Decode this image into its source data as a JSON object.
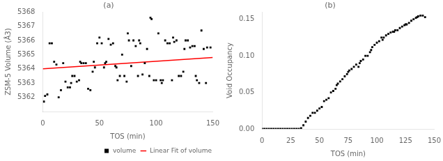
{
  "chart_data": [
    {
      "type": "scatter",
      "title": "(a)",
      "xlabel": "TOS (min)",
      "ylabel": "ZSM-5 Volume (Å3)",
      "xlim": [
        0,
        150
      ],
      "ylim": [
        5361,
        5368
      ],
      "xticks": [
        0,
        50,
        100,
        150
      ],
      "yticks": [
        5362,
        5363,
        5364,
        5365,
        5366,
        5367,
        5368
      ],
      "grid": false,
      "legend": "lower right",
      "series": [
        {
          "name": "volume",
          "type": "scatter",
          "marker": "square",
          "color": "#000000",
          "x": [
            1,
            2,
            4,
            6,
            8,
            10,
            12,
            14,
            16,
            18,
            20,
            22,
            24,
            25,
            26,
            28,
            30,
            32,
            33,
            34,
            36,
            38,
            40,
            42,
            44,
            45,
            46,
            48,
            50,
            52,
            54,
            55,
            56,
            58,
            60,
            62,
            64,
            65,
            66,
            68,
            70,
            72,
            74,
            75,
            76,
            78,
            80,
            82,
            84,
            85,
            86,
            88,
            90,
            92,
            94,
            95,
            96,
            98,
            100,
            102,
            104,
            105,
            106,
            108,
            110,
            112,
            114,
            115,
            116,
            118,
            120,
            122,
            124,
            125,
            126,
            128,
            130,
            132,
            134,
            135,
            136,
            138,
            140,
            142,
            144,
            145,
            148
          ],
          "values": [
            5361.7,
            5362.1,
            5362.2,
            5365.8,
            5365.8,
            5364.5,
            5364.3,
            5362.0,
            5362.5,
            5364.4,
            5363.1,
            5362.7,
            5362.7,
            5363.0,
            5363.5,
            5363.5,
            5363.1,
            5363.2,
            5364.5,
            5364.4,
            5364.4,
            5364.4,
            5362.6,
            5362.5,
            5363.8,
            5364.5,
            5364.1,
            5365.8,
            5366.2,
            5365.8,
            5364.1,
            5364.4,
            5364.5,
            5366.1,
            5365.7,
            5365.8,
            5364.2,
            5364.1,
            5363.2,
            5363.5,
            5365.0,
            5363.5,
            5363.1,
            5366.5,
            5366.0,
            5364.2,
            5366.0,
            5365.6,
            5363.5,
            5366.0,
            5365.8,
            5363.6,
            5364.4,
            5365.4,
            5363.5,
            5367.6,
            5367.5,
            5363.2,
            5363.2,
            5366.5,
            5363.2,
            5363.0,
            5363.2,
            5366.0,
            5365.8,
            5365.8,
            5363.2,
            5366.2,
            5365.9,
            5366.0,
            5363.5,
            5363.5,
            5363.8,
            5365.4,
            5366.0,
            5366.0,
            5365.5,
            5365.6,
            5365.6,
            5363.5,
            5363.2,
            5363.0,
            5366.7,
            5365.4,
            5363.0,
            5365.5,
            5365.5
          ]
        },
        {
          "name": "Linear Fit of volume",
          "type": "line",
          "color": "#ff0000",
          "x": [
            0,
            150
          ],
          "values": [
            5364.0,
            5364.8
          ]
        }
      ]
    },
    {
      "type": "scatter",
      "title": "(b)",
      "xlabel": "TOS (min)",
      "ylabel": "Void Occupancy",
      "xlim": [
        0,
        150
      ],
      "ylim": [
        0,
        0.16
      ],
      "xticks": [
        0,
        25,
        50,
        75,
        100,
        125,
        150
      ],
      "yticks": [
        {
          "value": 0,
          "label": "0.00"
        },
        0.05,
        {
          "value": 0.1,
          "label": "0.10"
        },
        0.15
      ],
      "grid": false,
      "series": [
        {
          "type": "scatter",
          "marker": "square",
          "color": "#000000",
          "x": [
            0,
            2,
            4,
            6,
            8,
            10,
            12,
            14,
            16,
            18,
            20,
            22,
            24,
            26,
            28,
            30,
            32,
            34,
            36,
            38,
            40,
            42,
            44,
            46,
            48,
            50,
            52,
            54,
            56,
            58,
            60,
            62,
            64,
            65,
            66,
            68,
            70,
            72,
            74,
            75,
            76,
            78,
            80,
            82,
            84,
            85,
            86,
            88,
            90,
            92,
            94,
            95,
            96,
            98,
            100,
            102,
            104,
            105,
            106,
            108,
            110,
            112,
            114,
            115,
            116,
            118,
            120,
            122,
            124,
            125,
            126,
            128,
            130,
            132,
            134,
            135,
            136,
            138,
            140,
            142
          ],
          "values": [
            0.0,
            0.0,
            0.0,
            0.0,
            0.0,
            0.0,
            0.0,
            0.0,
            0.0,
            0.0,
            0.0,
            0.0,
            0.0,
            0.0,
            0.0,
            0.0,
            0.0,
            0.001,
            0.005,
            0.01,
            0.015,
            0.018,
            0.022,
            0.022,
            0.025,
            0.028,
            0.03,
            0.038,
            0.04,
            0.042,
            0.05,
            0.052,
            0.055,
            0.06,
            0.062,
            0.065,
            0.068,
            0.072,
            0.075,
            0.078,
            0.08,
            0.082,
            0.085,
            0.088,
            0.085,
            0.09,
            0.093,
            0.095,
            0.1,
            0.1,
            0.105,
            0.108,
            0.112,
            0.115,
            0.118,
            0.12,
            0.125,
            0.122,
            0.125,
            0.128,
            0.13,
            0.132,
            0.133,
            0.133,
            0.135,
            0.135,
            0.138,
            0.14,
            0.142,
            0.143,
            0.143,
            0.145,
            0.148,
            0.15,
            0.152,
            0.153,
            0.154,
            0.155,
            0.155,
            0.153
          ]
        }
      ]
    }
  ]
}
